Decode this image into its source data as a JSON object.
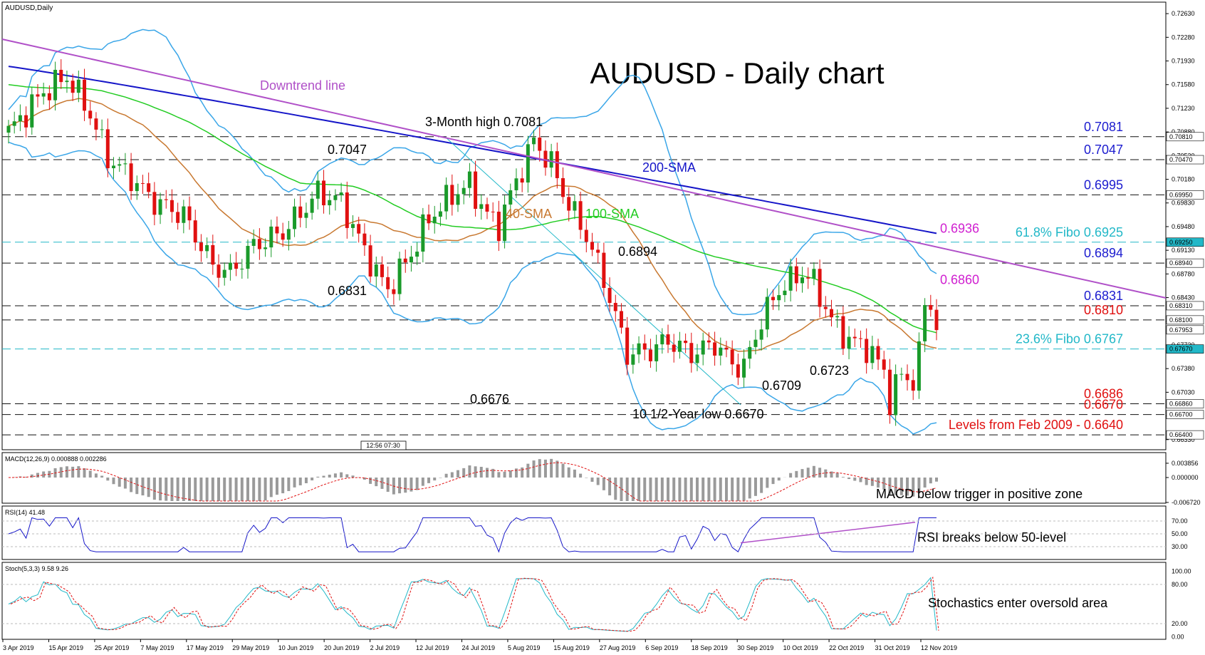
{
  "header": {
    "symbol_label": "AUDUSD,Daily",
    "title": "AUDUSD - Daily chart"
  },
  "price_axis": {
    "ticks": [
      "0.72630",
      "0.72280",
      "0.71930",
      "0.71580",
      "0.71230",
      "0.70880",
      "0.70530",
      "0.70180",
      "0.69830",
      "0.69480",
      "0.69130",
      "0.68780",
      "0.68430",
      "0.68080",
      "0.67730",
      "0.67380",
      "0.67030",
      "0.66680",
      "0.66330"
    ],
    "tick_values": [
      0.7263,
      0.7228,
      0.7193,
      0.7158,
      0.7123,
      0.7088,
      0.7053,
      0.7018,
      0.6983,
      0.6948,
      0.6913,
      0.6878,
      0.6843,
      0.6808,
      0.6773,
      0.6738,
      0.6703,
      0.6668,
      0.6633
    ],
    "ylim": [
      0.6618,
      0.728
    ]
  },
  "levels": [
    {
      "value": 0.7081,
      "tag": "0.70810",
      "label": "0.7081",
      "color": "#1c1ccf",
      "line": "dash-black"
    },
    {
      "value": 0.7047,
      "tag": "0.70470",
      "label": "0.7047",
      "color": "#1c1ccf",
      "line": "dash-black"
    },
    {
      "value": 0.6995,
      "tag": "0.69950",
      "label": "0.6995",
      "color": "#1c1ccf",
      "line": "dash-black"
    },
    {
      "value": 0.6925,
      "tag": "0.69250",
      "label": "61.8% Fibo 0.6925",
      "color": "#22b8c8",
      "line": "dash-cyan"
    },
    {
      "value": 0.6894,
      "tag": "0.68940",
      "label": "0.6894",
      "color": "#1c1ccf",
      "line": "dash-black"
    },
    {
      "value": 0.6831,
      "tag": "0.68310",
      "label": "0.6831",
      "color": "#1c1ccf",
      "line": "dash-black"
    },
    {
      "value": 0.681,
      "tag": "0.68100",
      "label": "0.6810",
      "color": "#e01010",
      "line": "dash-black"
    },
    {
      "value": 0.6767,
      "tag": "0.67670",
      "label": "23.6% Fibo 0.6767",
      "color": "#22b8c8",
      "line": "dash-cyan"
    },
    {
      "value": 0.6686,
      "tag": "0.66860",
      "label": "0.6686",
      "color": "#e01010",
      "line": "dash-black"
    },
    {
      "value": 0.667,
      "tag": "0.66700",
      "label": "0.6670",
      "color": "#e01010",
      "line": "dash-black"
    },
    {
      "value": 0.664,
      "tag": "0.66400",
      "label": "Levels from Feb 2009 - 0.6640",
      "color": "#e01010",
      "line": "dash-black"
    }
  ],
  "current_price_tag": {
    "value": 0.67953,
    "tag": "0.67953"
  },
  "extra_labels": [
    {
      "text": "0.6936",
      "color": "#d020d0"
    },
    {
      "text": "0.6860",
      "color": "#d020d0"
    }
  ],
  "annotations": {
    "downtrend": "Downtrend line",
    "sma200": "200-SMA",
    "sma100": "100-SMA",
    "sma40": "40-SMA",
    "high3m": "3-Month high 0.7081",
    "p7047": "0.7047",
    "p6894": "0.6894",
    "p6831": "0.6831",
    "p6723": "0.6723",
    "p6709": "0.6709",
    "p6676": "0.6676",
    "low10y": "10 1/2-Year low 0.6670",
    "time_box": "12:56 07:30"
  },
  "macd": {
    "label": "MACD(12,26,9) 0.000888 0.002286",
    "ticks": [
      "0.003856",
      "0.000000",
      "-0.006720"
    ],
    "comment": "MACD below trigger in positive zone"
  },
  "rsi": {
    "label": "RSI(14) 41.48",
    "ticks": [
      "70.00",
      "50.00",
      "30.00"
    ],
    "comment": "RSI breaks below 50-level"
  },
  "stoch": {
    "label": "Stoch(5,3,3) 9.58 9.26",
    "ticks": [
      "100.00",
      "80.00",
      "20.00",
      "0.00"
    ],
    "comment": "Stochastics enter oversold area"
  },
  "time_axis": {
    "labels": [
      "3 Apr 2019",
      "15 Apr 2019",
      "25 Apr 2019",
      "7 May 2019",
      "17 May 2019",
      "29 May 2019",
      "10 Jun 2019",
      "20 Jun 2019",
      "2 Jul 2019",
      "12 Jul 2019",
      "24 Jul 2019",
      "5 Aug 2019",
      "15 Aug 2019",
      "27 Aug 2019",
      "6 Sep 2019",
      "18 Sep 2019",
      "30 Sep 2019",
      "10 Oct 2019",
      "22 Oct 2019",
      "31 Oct 2019",
      "12 Nov 2019"
    ]
  },
  "chart_data": {
    "type": "line",
    "title": "AUDUSD - Daily chart",
    "x_range": [
      "3 Apr 2019",
      "13 Nov 2019"
    ],
    "ylim": [
      0.6618,
      0.728
    ],
    "key_points": [
      {
        "date": "12 Jul 2019",
        "value": 0.7081,
        "label": "3-Month high 0.7081"
      },
      {
        "date": "2 Jul 2019",
        "value": 0.7047,
        "label": "0.7047"
      },
      {
        "date": "6 Sep 2019",
        "value": 0.6894,
        "label": "0.6894"
      },
      {
        "date": "11 Jun 2019",
        "value": 0.6831,
        "label": "0.6831"
      },
      {
        "date": "7 Aug 2019",
        "value": 0.6676,
        "label": "0.6676"
      },
      {
        "date": "2 Oct 2019",
        "value": 0.667,
        "label": "10 1/2-Year low 0.6670"
      },
      {
        "date": "8 Oct 2019",
        "value": 0.6709,
        "label": "0.6709"
      },
      {
        "date": "16 Oct 2019",
        "value": 0.6723,
        "label": "0.6723"
      }
    ],
    "series": [
      {
        "name": "200-SMA",
        "color": "#1515c8"
      },
      {
        "name": "100-SMA",
        "color": "#22cc22"
      },
      {
        "name": "40-SMA",
        "color": "#c87830"
      }
    ]
  }
}
